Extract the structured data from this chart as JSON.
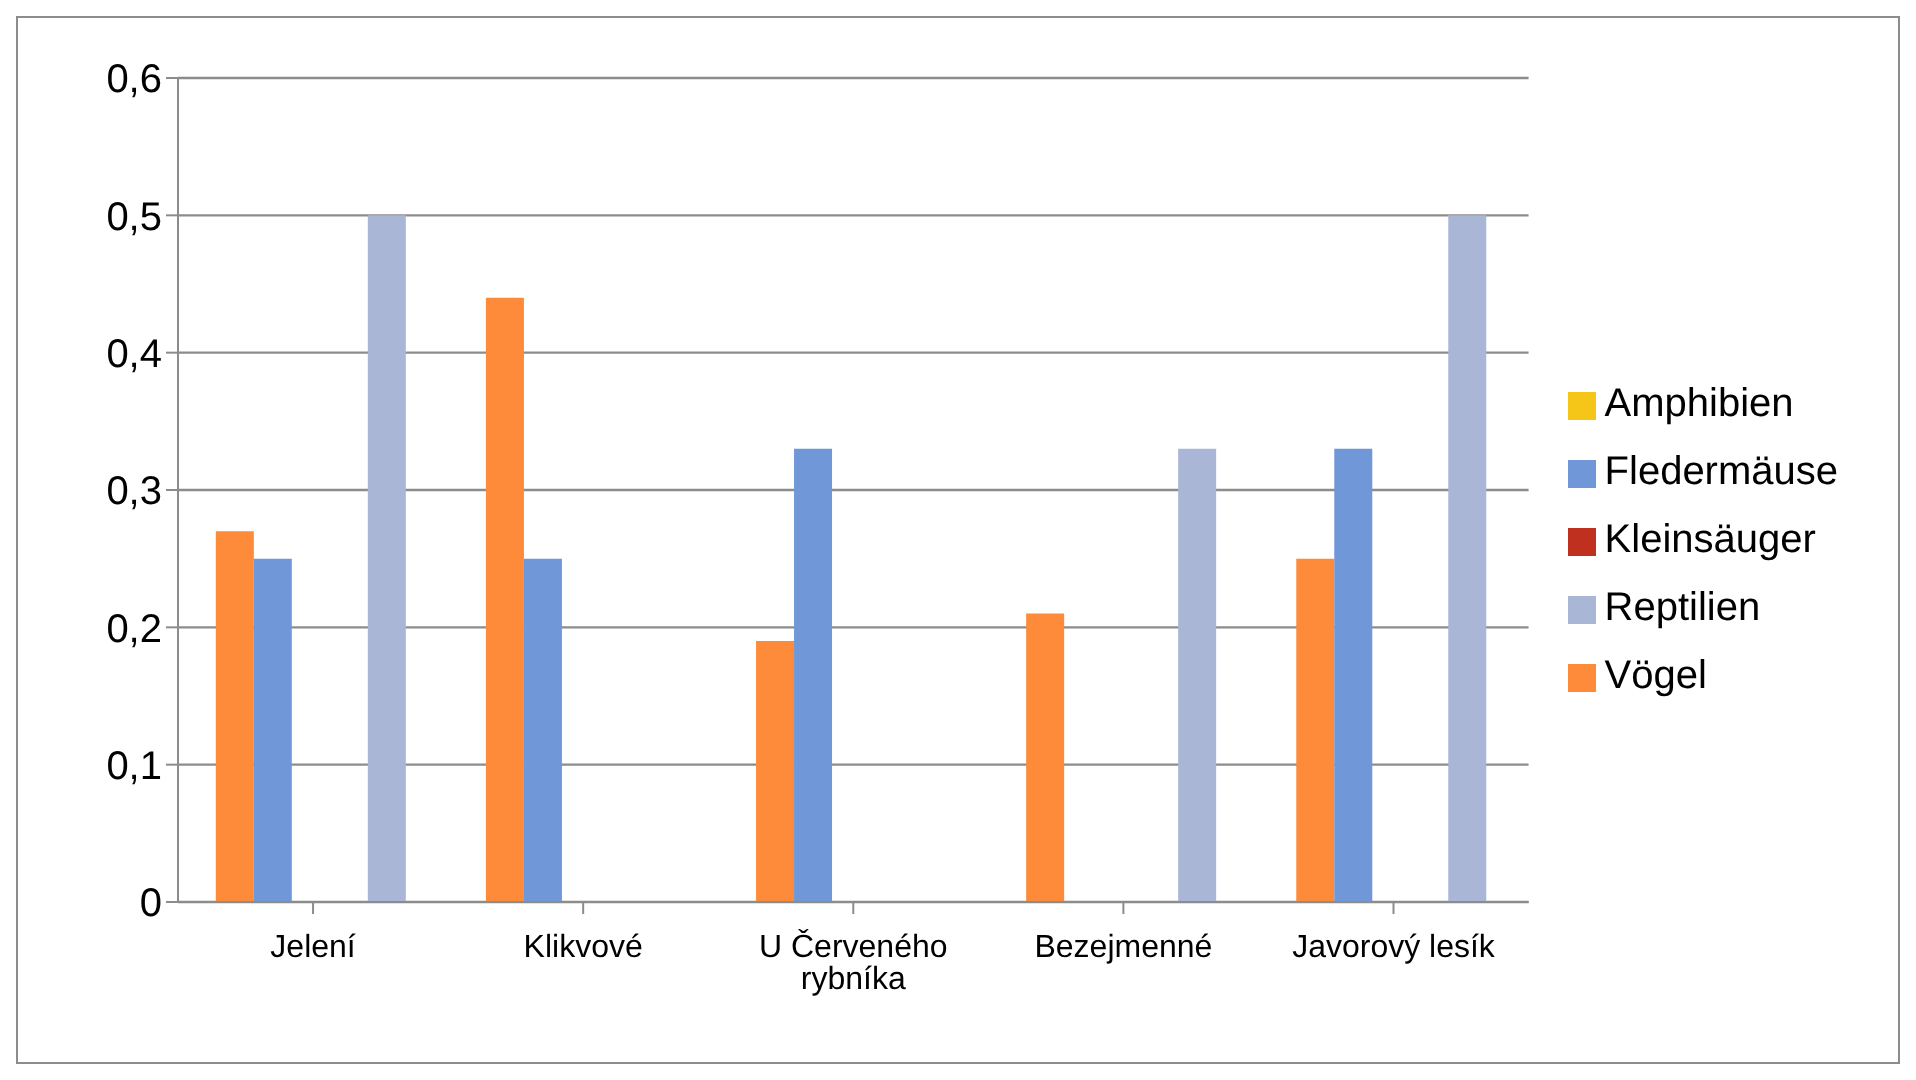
{
  "chart_data": {
    "type": "bar",
    "categories": [
      "Jelení",
      "Klikvové",
      "U Červeného rybníka",
      "Bezejmenné",
      "Javorový lesík"
    ],
    "series": [
      {
        "name": "Vögel",
        "color": "#fd8b3a",
        "values": [
          0.27,
          0.44,
          0.19,
          0.21,
          0.25
        ]
      },
      {
        "name": "Fledermäuse",
        "color": "#7097d8",
        "values": [
          0.25,
          0.25,
          0.33,
          0,
          0.33
        ]
      },
      {
        "name": "Kleinsäuger",
        "color": "#c0301f",
        "values": [
          0,
          0,
          0,
          0,
          0
        ]
      },
      {
        "name": "Amphibien",
        "color": "#f5c518",
        "values": [
          0,
          0,
          0,
          0,
          0
        ]
      },
      {
        "name": "Reptilien",
        "color": "#aab6d6",
        "values": [
          0.5,
          0,
          0,
          0.33,
          0.5
        ]
      }
    ],
    "ylim": [
      0,
      0.6
    ],
    "yticks": [
      {
        "value": 0,
        "label": "0"
      },
      {
        "value": 0.1,
        "label": "0,1"
      },
      {
        "value": 0.2,
        "label": "0,2"
      },
      {
        "value": 0.3,
        "label": "0,3"
      },
      {
        "value": 0.4,
        "label": "0,4"
      },
      {
        "value": 0.5,
        "label": "0,5"
      },
      {
        "value": 0.6,
        "label": "0,6"
      }
    ],
    "grid": "y",
    "legend": "right"
  }
}
